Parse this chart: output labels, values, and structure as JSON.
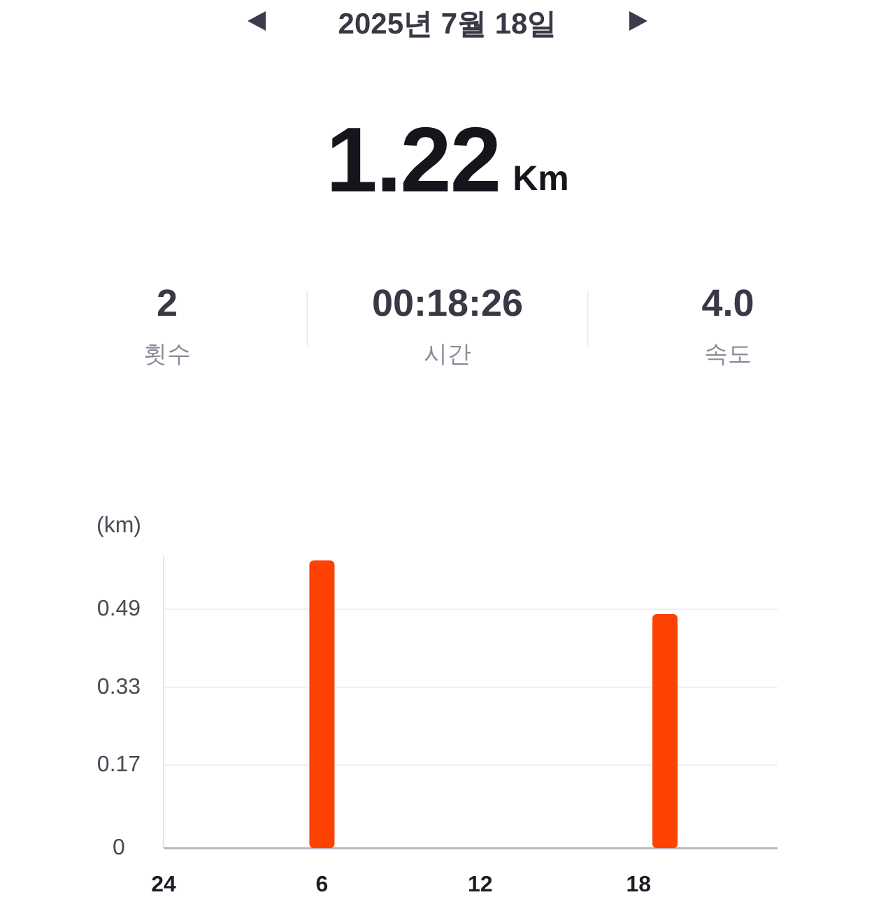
{
  "chart_data": {
    "type": "bar",
    "title": "2025년 7월 18일",
    "ylabel": "(km)",
    "annotations": [
      "1.22",
      "Km",
      "2",
      "횟수",
      "00:18:26",
      "시간",
      "4.0",
      "속도"
    ],
    "categories": [
      "24",
      null,
      null,
      null,
      null,
      null,
      "6",
      null,
      null,
      null,
      null,
      null,
      "12",
      null,
      null,
      null,
      null,
      null,
      "18",
      null,
      null,
      null,
      null,
      null
    ],
    "values": [
      null,
      null,
      null,
      null,
      null,
      null,
      0.59,
      null,
      null,
      null,
      null,
      null,
      null,
      null,
      null,
      null,
      null,
      null,
      null,
      0.48,
      null,
      null,
      null,
      null
    ],
    "color": "#fe4202",
    "ylim": [
      0,
      0.6
    ],
    "yticks": [
      0,
      0.17,
      0.33,
      0.49
    ],
    "grid": "y"
  }
}
